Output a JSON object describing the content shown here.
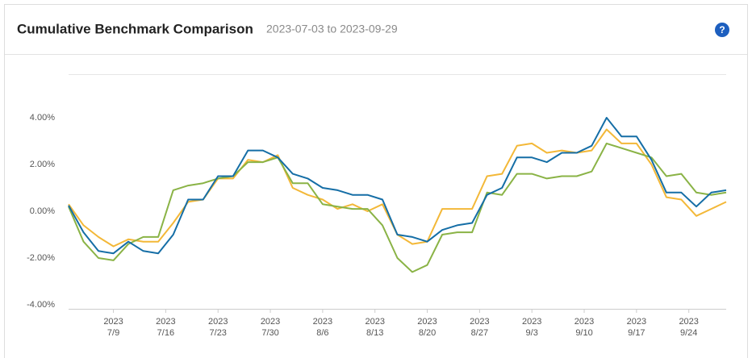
{
  "chart_data": {
    "type": "line",
    "title": "Cumulative Benchmark Comparison",
    "subtitle": "2023-07-03 to 2023-09-29",
    "help_icon": "?",
    "x": [
      "2023-07-03",
      "2023-07-05",
      "2023-07-07",
      "2023-07-09",
      "2023-07-11",
      "2023-07-13",
      "2023-07-15",
      "2023-07-17",
      "2023-07-19",
      "2023-07-21",
      "2023-07-23",
      "2023-07-25",
      "2023-07-27",
      "2023-07-29",
      "2023-07-31",
      "2023-08-02",
      "2023-08-04",
      "2023-08-06",
      "2023-08-08",
      "2023-08-10",
      "2023-08-12",
      "2023-08-14",
      "2023-08-16",
      "2023-08-18",
      "2023-08-20",
      "2023-08-22",
      "2023-08-24",
      "2023-08-26",
      "2023-08-28",
      "2023-08-30",
      "2023-09-01",
      "2023-09-03",
      "2023-09-05",
      "2023-09-07",
      "2023-09-09",
      "2023-09-11",
      "2023-09-13",
      "2023-09-15",
      "2023-09-17",
      "2023-09-19",
      "2023-09-21",
      "2023-09-23",
      "2023-09-25",
      "2023-09-27",
      "2023-09-29"
    ],
    "series": [
      {
        "color": "#f3b838",
        "values": [
          0.3,
          -0.6,
          -1.1,
          -1.5,
          -1.2,
          -1.3,
          -1.3,
          -0.5,
          0.4,
          0.5,
          1.4,
          1.4,
          2.2,
          2.1,
          2.4,
          1.0,
          0.7,
          0.5,
          0.1,
          0.3,
          0.0,
          0.3,
          -1.0,
          -1.4,
          -1.3,
          0.1,
          0.1,
          0.1,
          1.5,
          1.6,
          2.8,
          2.9,
          2.5,
          2.6,
          2.5,
          2.6,
          3.5,
          2.9,
          2.9,
          2.0,
          0.6,
          0.5,
          -0.2,
          0.1,
          0.4
        ]
      },
      {
        "color": "#8ab346",
        "values": [
          0.2,
          -1.3,
          -2.0,
          -2.1,
          -1.4,
          -1.1,
          -1.1,
          0.9,
          1.1,
          1.2,
          1.4,
          1.5,
          2.1,
          2.1,
          2.3,
          1.2,
          1.2,
          0.3,
          0.2,
          0.1,
          0.1,
          -0.6,
          -2.0,
          -2.6,
          -2.3,
          -1.0,
          -0.9,
          -0.9,
          0.8,
          0.7,
          1.6,
          1.6,
          1.4,
          1.5,
          1.5,
          1.7,
          2.9,
          2.7,
          2.5,
          2.3,
          1.5,
          1.6,
          0.8,
          0.7,
          0.8
        ]
      },
      {
        "color": "#156ea6",
        "values": [
          0.25,
          -0.9,
          -1.7,
          -1.8,
          -1.3,
          -1.7,
          -1.8,
          -1.0,
          0.5,
          0.5,
          1.5,
          1.5,
          2.6,
          2.6,
          2.3,
          1.6,
          1.4,
          1.0,
          0.9,
          0.7,
          0.7,
          0.5,
          -1.0,
          -1.1,
          -1.3,
          -0.8,
          -0.6,
          -0.5,
          0.7,
          1.0,
          2.3,
          2.3,
          2.1,
          2.5,
          2.5,
          2.8,
          4.0,
          3.2,
          3.2,
          2.2,
          0.8,
          0.8,
          0.2,
          0.8,
          0.9
        ]
      }
    ],
    "xlim": [
      "2023-07-03",
      "2023-09-29"
    ],
    "xticks": [
      {
        "value": "2023-07-09",
        "year": "2023",
        "label": "7/9"
      },
      {
        "value": "2023-07-16",
        "year": "2023",
        "label": "7/16"
      },
      {
        "value": "2023-07-23",
        "year": "2023",
        "label": "7/23"
      },
      {
        "value": "2023-07-30",
        "year": "2023",
        "label": "7/30"
      },
      {
        "value": "2023-08-06",
        "year": "2023",
        "label": "8/6"
      },
      {
        "value": "2023-08-13",
        "year": "2023",
        "label": "8/13"
      },
      {
        "value": "2023-08-20",
        "year": "2023",
        "label": "8/20"
      },
      {
        "value": "2023-08-27",
        "year": "2023",
        "label": "8/27"
      },
      {
        "value": "2023-09-03",
        "year": "2023",
        "label": "9/3"
      },
      {
        "value": "2023-09-10",
        "year": "2023",
        "label": "9/10"
      },
      {
        "value": "2023-09-17",
        "year": "2023",
        "label": "9/17"
      },
      {
        "value": "2023-09-24",
        "year": "2023",
        "label": "9/24"
      }
    ],
    "ylim": [
      -4.17,
      5.86
    ],
    "yticks": [
      {
        "value": -4,
        "label": "-4.00%"
      },
      {
        "value": -2,
        "label": "-2.00%"
      },
      {
        "value": 0,
        "label": "0.00%"
      },
      {
        "value": 2,
        "label": "2.00%"
      },
      {
        "value": 4,
        "label": "4.00%"
      }
    ],
    "grid": false
  }
}
